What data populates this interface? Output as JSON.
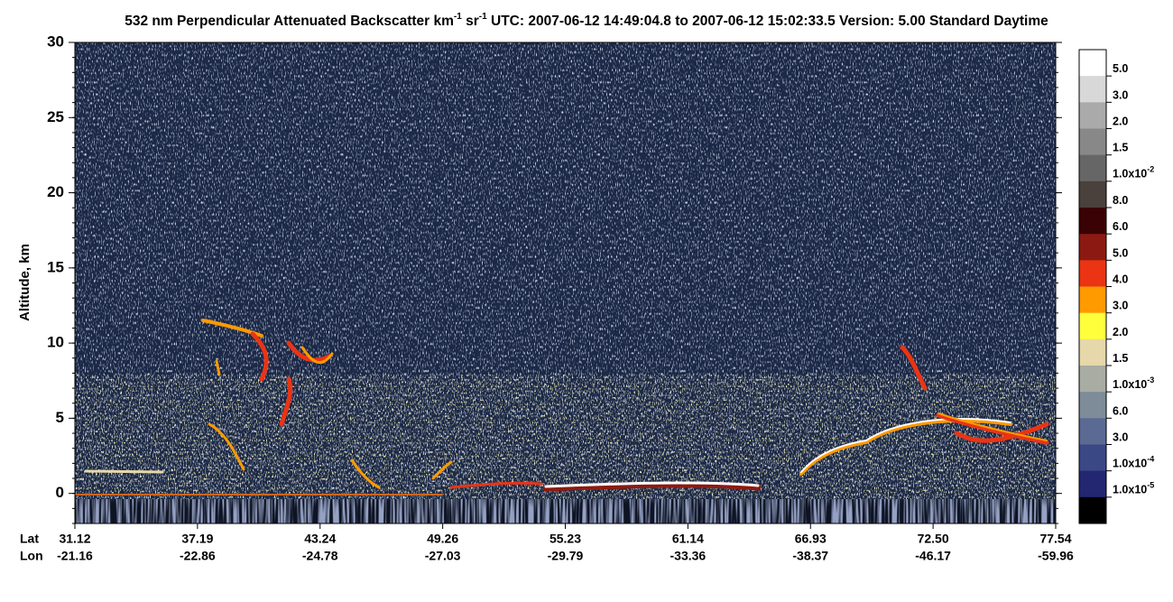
{
  "chart_data": {
    "type": "curtain",
    "title_parts": [
      "532 nm Perpendicular Attenuated Backscatter km",
      "-1",
      " sr",
      "-1",
      "  UTC: 2007-06-12 14:49:04.8 to 2007-06-12 15:02:33.5  Version: 5.00 Standard Daytime"
    ],
    "ylabel": "Altitude, km",
    "ylim": [
      -2,
      30
    ],
    "yticks": [
      0,
      5,
      10,
      15,
      20,
      25,
      30
    ],
    "xtick_rows": [
      "Lat",
      "Lon"
    ],
    "xticks": [
      {
        "lat": "31.12",
        "lon": "-21.16"
      },
      {
        "lat": "37.19",
        "lon": "-22.86"
      },
      {
        "lat": "43.24",
        "lon": "-24.78"
      },
      {
        "lat": "49.26",
        "lon": "-27.03"
      },
      {
        "lat": "55.23",
        "lon": "-29.79"
      },
      {
        "lat": "61.14",
        "lon": "-33.36"
      },
      {
        "lat": "66.93",
        "lon": "-38.37"
      },
      {
        "lat": "72.50",
        "lon": "-46.17"
      },
      {
        "lat": "77.54",
        "lon": "-59.96"
      }
    ],
    "colorbar": {
      "colors": [
        "#ffffff",
        "#d8d8d8",
        "#aaaaaa",
        "#888888",
        "#666666",
        "#4a403c",
        "#3a0204",
        "#8c1a12",
        "#ea3414",
        "#ff9a00",
        "#ffff3c",
        "#e6d8aa",
        "#a9aca2",
        "#7d8c98",
        "#5a6a92",
        "#3a4886",
        "#232670",
        "#000000"
      ],
      "labels": [
        "5.0",
        "3.0",
        "2.0",
        "1.5",
        {
          "text": "1.0x10",
          "sup": "-2"
        },
        "8.0",
        "6.0",
        "5.0",
        "4.0",
        "3.0",
        "2.0",
        "1.5",
        {
          "text": "1.0x10",
          "sup": "-3"
        },
        "6.0",
        "3.0",
        {
          "text": "1.0x10",
          "sup": "-4"
        },
        {
          "text": "1.0x10",
          "sup": "-5"
        }
      ]
    }
  }
}
